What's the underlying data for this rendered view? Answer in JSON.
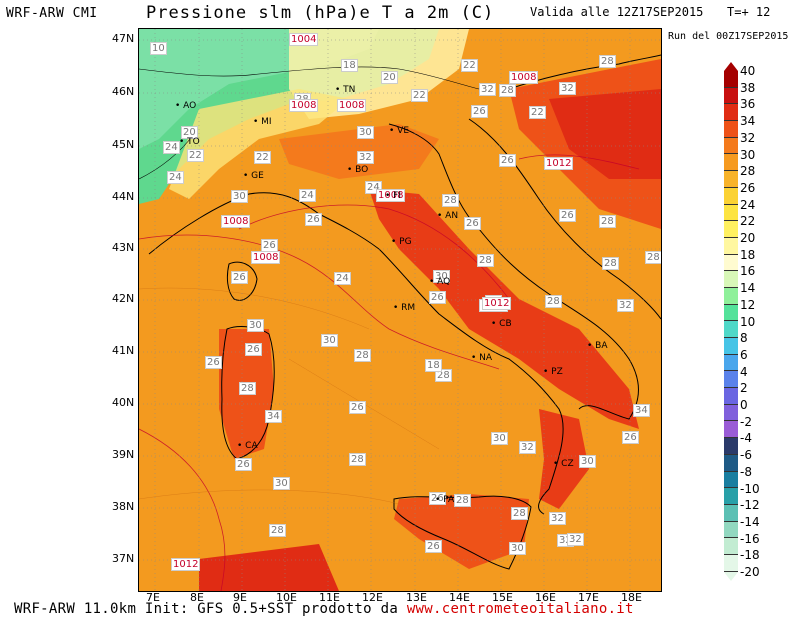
{
  "header": {
    "model": "WRF-ARW CMI",
    "title": "Pressione slm (hPa)e T a 2m (C)",
    "valid": "Valida alle 12Z17SEP2015",
    "step": "T=+ 12",
    "run": "Run del 00Z17SEP2015"
  },
  "footer": {
    "text": "WRF-ARW 11.0km Init: GFS 0.5+SST prodotto da",
    "url": "www.centrometeoitaliano.it"
  },
  "axes": {
    "lat": [
      "47N",
      "46N",
      "45N",
      "44N",
      "43N",
      "42N",
      "41N",
      "40N",
      "39N",
      "38N",
      "37N"
    ],
    "lon": [
      "7E",
      "8E",
      "9E",
      "10E",
      "11E",
      "12E",
      "13E",
      "14E",
      "15E",
      "16E",
      "17E",
      "18E"
    ]
  },
  "legend": {
    "values": [
      "40",
      "38",
      "36",
      "34",
      "32",
      "30",
      "28",
      "26",
      "24",
      "22",
      "20",
      "18",
      "16",
      "14",
      "12",
      "10",
      "8",
      "6",
      "4",
      "2",
      "0",
      "-2",
      "-4",
      "-6",
      "-8",
      "-10",
      "-12",
      "-14",
      "-16",
      "-18",
      "-20"
    ],
    "colors": [
      "#a50000",
      "#c81010",
      "#e02c14",
      "#ee5218",
      "#f47a1c",
      "#f69a20",
      "#f8b32a",
      "#fbd234",
      "#fde442",
      "#fff060",
      "#fff7a0",
      "#fffbd0",
      "#d8f7b8",
      "#8ff09a",
      "#54e29a",
      "#4fd8c8",
      "#46c4e6",
      "#4aa6ec",
      "#5a82ea",
      "#6a66e2",
      "#8060dc",
      "#9a5cd6",
      "#2a3a6a",
      "#1e5a86",
      "#1a7ea0",
      "#28a0a8",
      "#5cc0b4",
      "#92d8c0",
      "#c2ecd2",
      "#e4f7e8"
    ]
  },
  "temp_labels": [
    "18",
    "22",
    "20",
    "22",
    "24",
    "28",
    "10",
    "20",
    "22",
    "24",
    "30",
    "32",
    "28",
    "32",
    "32",
    "28",
    "22",
    "26",
    "22",
    "24",
    "30",
    "26",
    "24",
    "26",
    "24",
    "30",
    "26",
    "28",
    "26",
    "28",
    "28",
    "28",
    "26",
    "30",
    "26",
    "26",
    "28",
    "28",
    "32",
    "32",
    "30",
    "34",
    "26",
    "28",
    "26",
    "30",
    "26",
    "26",
    "28",
    "26",
    "30",
    "34",
    "26",
    "28",
    "26",
    "32",
    "28",
    "32",
    "30",
    "32",
    "28",
    "30",
    "28",
    "26",
    "18",
    "28"
  ],
  "pressure_labels": [
    "1004",
    "1008",
    "1008",
    "1008",
    "1008",
    "1008",
    "1008",
    "1008",
    "1012",
    "1012",
    "1012"
  ],
  "cities": [
    "AO",
    "TO",
    "MI",
    "GE",
    "TN",
    "VE",
    "BO",
    "FI",
    "AN",
    "PG",
    "AQ",
    "RM",
    "NA",
    "CB",
    "BA",
    "PZ",
    "CZ",
    "PA",
    "CA"
  ]
}
